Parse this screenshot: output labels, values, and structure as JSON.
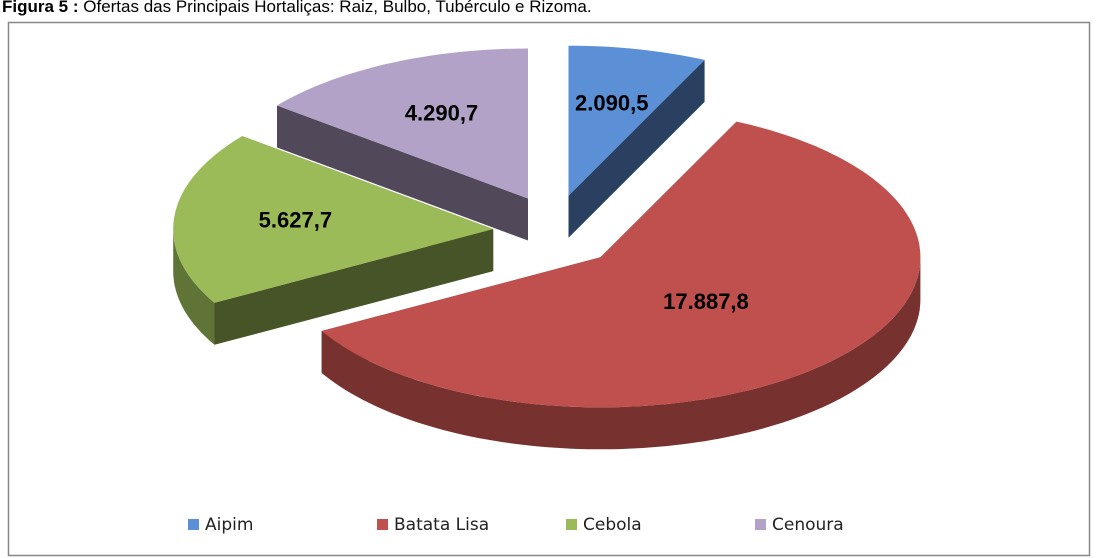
{
  "chart_data": {
    "type": "pie",
    "figure_label": "Figura 5 :",
    "title": "Ofertas das Principais Hortaliças: Raiz, Bulbo, Tubérculo e Rizoma.",
    "categories": [
      "Aipim",
      "Batata Lisa",
      "Cebola",
      "Cenoura"
    ],
    "values": [
      2090.5,
      17887.8,
      5627.7,
      4290.7
    ],
    "value_labels": [
      "2.090,5",
      "17.887,8",
      "5.627,7",
      "4.290,7"
    ],
    "colors": [
      "#5b8fd6",
      "#c0504d",
      "#9bbb59",
      "#b3a2c7"
    ],
    "legend": "bottom"
  }
}
